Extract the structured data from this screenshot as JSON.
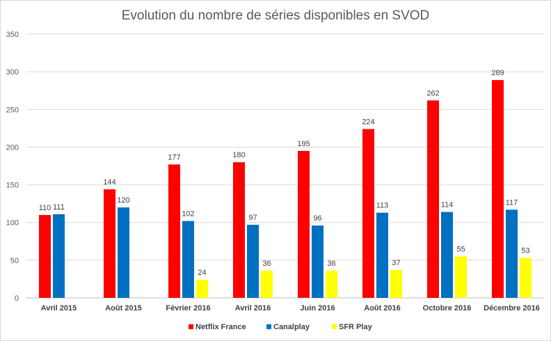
{
  "chart_data": {
    "type": "bar",
    "title": "Evolution du nombre de séries disponibles en SVOD",
    "xlabel": "",
    "ylabel": "",
    "ylim": [
      0,
      350
    ],
    "yticks": [
      0,
      50,
      100,
      150,
      200,
      250,
      300,
      350
    ],
    "grid": true,
    "legend_position": "bottom",
    "categories": [
      "Avril 2015",
      "Août 2015",
      "Février 2016",
      "Avril 2016",
      "Juin 2016",
      "Août 2016",
      "Octobre 2016",
      "Décembre 2016"
    ],
    "series": [
      {
        "name": "Netflix France",
        "color": "#ff0000",
        "values": [
          110,
          144,
          177,
          180,
          195,
          224,
          262,
          289
        ]
      },
      {
        "name": "Canalplay",
        "color": "#0070c0",
        "values": [
          111,
          120,
          102,
          97,
          96,
          113,
          114,
          117
        ]
      },
      {
        "name": "SFR Play",
        "color": "#ffff00",
        "values": [
          null,
          null,
          24,
          36,
          36,
          37,
          55,
          53
        ]
      }
    ]
  }
}
